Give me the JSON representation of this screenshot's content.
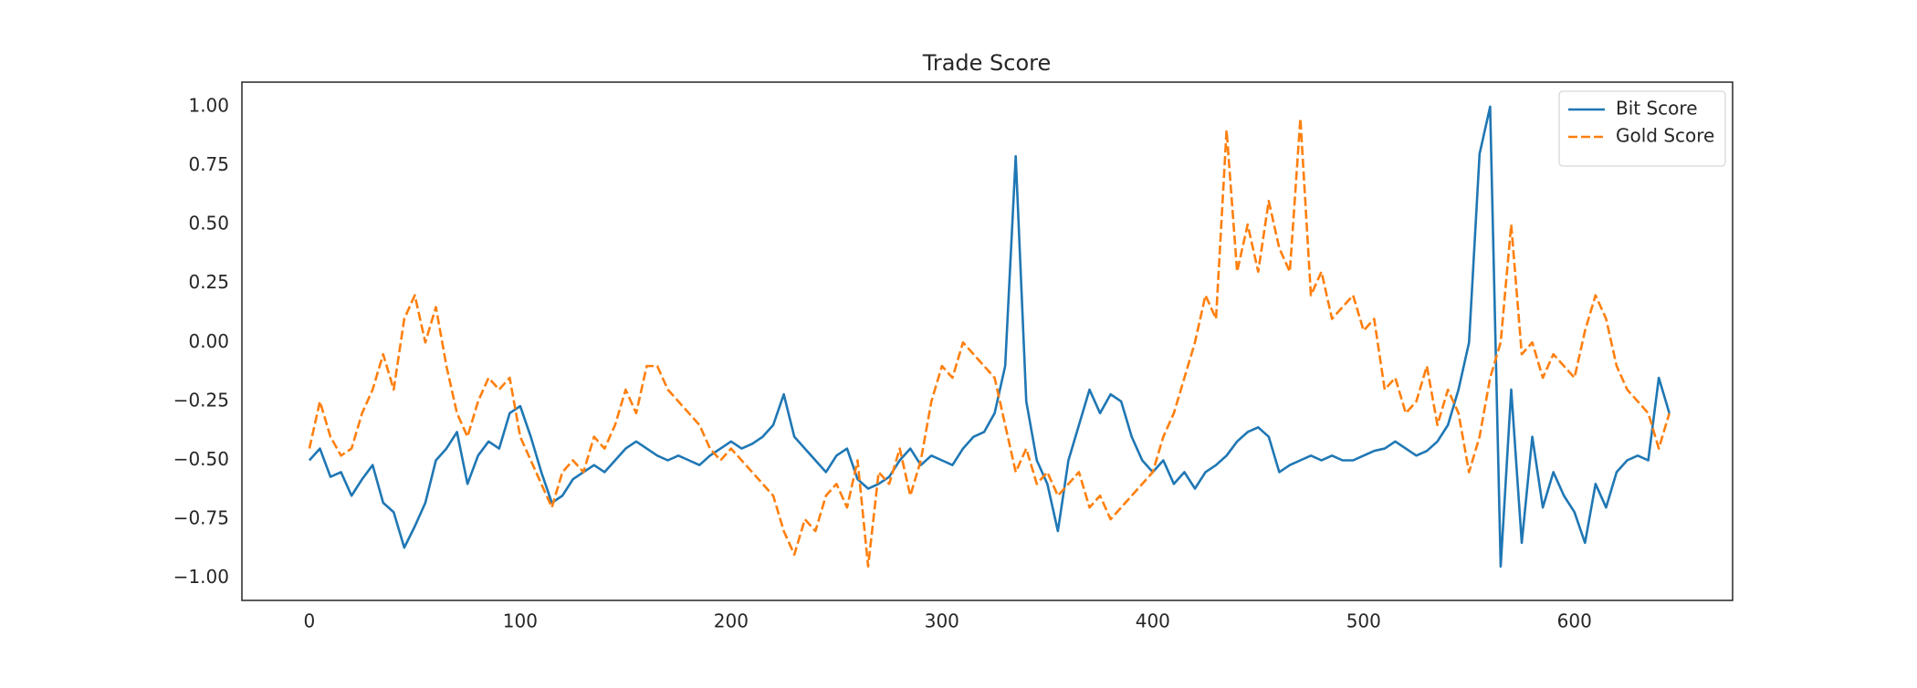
{
  "chart_data": {
    "type": "line",
    "title": "Trade Score",
    "x": [
      0,
      5,
      10,
      15,
      20,
      25,
      30,
      35,
      40,
      45,
      50,
      55,
      60,
      65,
      70,
      75,
      80,
      85,
      90,
      95,
      100,
      105,
      110,
      115,
      120,
      125,
      130,
      135,
      140,
      145,
      150,
      155,
      160,
      165,
      170,
      175,
      180,
      185,
      190,
      195,
      200,
      205,
      210,
      215,
      220,
      225,
      230,
      235,
      240,
      245,
      250,
      255,
      260,
      265,
      270,
      275,
      280,
      285,
      290,
      295,
      300,
      305,
      310,
      315,
      320,
      325,
      330,
      335,
      340,
      345,
      350,
      355,
      360,
      365,
      370,
      375,
      380,
      385,
      390,
      395,
      400,
      405,
      410,
      415,
      420,
      425,
      430,
      435,
      440,
      445,
      450,
      455,
      460,
      465,
      470,
      475,
      480,
      485,
      490,
      495,
      500,
      505,
      510,
      515,
      520,
      525,
      530,
      535,
      540,
      545,
      550,
      555,
      560,
      565,
      570,
      575,
      580,
      585,
      590,
      595,
      600,
      605,
      610,
      615,
      620,
      625,
      630,
      635,
      640,
      645
    ],
    "series": [
      {
        "name": "Bit Score",
        "color": "#1f77b4",
        "dash": false,
        "values": [
          -0.5,
          -0.45,
          -0.57,
          -0.55,
          -0.65,
          -0.58,
          -0.52,
          -0.68,
          -0.72,
          -0.87,
          -0.78,
          -0.68,
          -0.5,
          -0.45,
          -0.38,
          -0.6,
          -0.48,
          -0.42,
          -0.45,
          -0.3,
          -0.27,
          -0.4,
          -0.55,
          -0.68,
          -0.65,
          -0.58,
          -0.55,
          -0.52,
          -0.55,
          -0.5,
          -0.45,
          -0.42,
          -0.45,
          -0.48,
          -0.5,
          -0.48,
          -0.5,
          -0.52,
          -0.48,
          -0.45,
          -0.42,
          -0.45,
          -0.43,
          -0.4,
          -0.35,
          -0.22,
          -0.4,
          -0.45,
          -0.5,
          -0.55,
          -0.48,
          -0.45,
          -0.58,
          -0.62,
          -0.6,
          -0.57,
          -0.5,
          -0.45,
          -0.52,
          -0.48,
          -0.5,
          -0.52,
          -0.45,
          -0.4,
          -0.38,
          -0.3,
          -0.1,
          0.79,
          -0.25,
          -0.5,
          -0.6,
          -0.8,
          -0.5,
          -0.35,
          -0.2,
          -0.3,
          -0.22,
          -0.25,
          -0.4,
          -0.5,
          -0.55,
          -0.5,
          -0.6,
          -0.55,
          -0.62,
          -0.55,
          -0.52,
          -0.48,
          -0.42,
          -0.38,
          -0.36,
          -0.4,
          -0.55,
          -0.52,
          -0.5,
          -0.48,
          -0.5,
          -0.48,
          -0.5,
          -0.5,
          -0.48,
          -0.46,
          -0.45,
          -0.42,
          -0.45,
          -0.48,
          -0.46,
          -0.42,
          -0.35,
          -0.2,
          0.0,
          0.8,
          1.0,
          -0.95,
          -0.2,
          -0.85,
          -0.4,
          -0.7,
          -0.55,
          -0.65,
          -0.72,
          -0.85,
          -0.6,
          -0.7,
          -0.55,
          -0.5,
          -0.48,
          -0.5,
          -0.15,
          -0.3
        ]
      },
      {
        "name": "Gold Score",
        "color": "#ff7f0e",
        "dash": true,
        "values": [
          -0.45,
          -0.25,
          -0.4,
          -0.48,
          -0.45,
          -0.3,
          -0.2,
          -0.05,
          -0.2,
          0.1,
          0.2,
          0.0,
          0.15,
          -0.1,
          -0.3,
          -0.4,
          -0.25,
          -0.15,
          -0.2,
          -0.15,
          -0.4,
          -0.5,
          -0.6,
          -0.7,
          -0.55,
          -0.5,
          -0.55,
          -0.4,
          -0.45,
          -0.35,
          -0.2,
          -0.3,
          -0.1,
          -0.1,
          -0.2,
          -0.25,
          -0.3,
          -0.35,
          -0.45,
          -0.5,
          -0.45,
          -0.5,
          -0.55,
          -0.6,
          -0.65,
          -0.8,
          -0.9,
          -0.75,
          -0.8,
          -0.65,
          -0.6,
          -0.7,
          -0.5,
          -0.95,
          -0.55,
          -0.6,
          -0.45,
          -0.65,
          -0.5,
          -0.25,
          -0.1,
          -0.15,
          0.0,
          -0.05,
          -0.1,
          -0.15,
          -0.35,
          -0.55,
          -0.45,
          -0.6,
          -0.55,
          -0.65,
          -0.6,
          -0.55,
          -0.7,
          -0.65,
          -0.75,
          -0.7,
          -0.65,
          -0.6,
          -0.55,
          -0.4,
          -0.3,
          -0.15,
          0.0,
          0.2,
          0.1,
          0.9,
          0.3,
          0.5,
          0.3,
          0.6,
          0.4,
          0.3,
          0.95,
          0.2,
          0.3,
          0.1,
          0.15,
          0.2,
          0.05,
          0.1,
          -0.2,
          -0.15,
          -0.3,
          -0.25,
          -0.1,
          -0.35,
          -0.2,
          -0.3,
          -0.55,
          -0.4,
          -0.15,
          0.0,
          0.5,
          -0.05,
          0.0,
          -0.15,
          -0.05,
          -0.1,
          -0.15,
          0.05,
          0.2,
          0.1,
          -0.1,
          -0.2,
          -0.25,
          -0.3,
          -0.45,
          -0.3
        ]
      }
    ],
    "xlim": [
      -32,
      675
    ],
    "xticks": [
      0,
      100,
      200,
      300,
      400,
      500,
      600
    ],
    "ylim": [
      -1.094,
      1.104
    ],
    "yticks": [
      {
        "value": -1,
        "label": "−1.00"
      },
      {
        "value": -0.75,
        "label": "−0.75"
      },
      {
        "value": -0.5,
        "label": "−0.50"
      },
      {
        "value": -0.25,
        "label": "−0.25"
      },
      {
        "value": 0,
        "label": "0.00"
      },
      {
        "value": 0.25,
        "label": "0.25"
      },
      {
        "value": 0.5,
        "label": "0.50"
      },
      {
        "value": 0.75,
        "label": "0.75"
      },
      {
        "value": 1,
        "label": "1.00"
      }
    ],
    "grid": false,
    "legend": "upper right"
  }
}
